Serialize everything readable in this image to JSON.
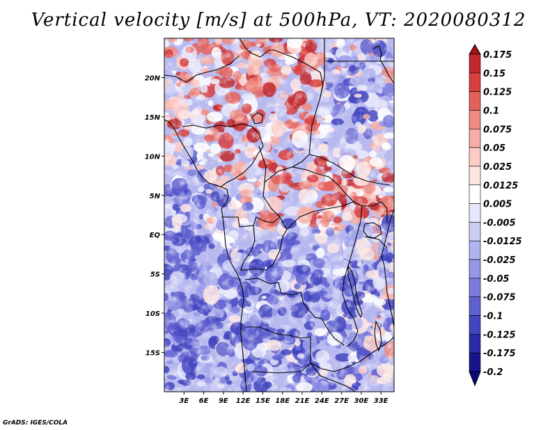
{
  "title": "Vertical velocity [m/s] at 500hPa, VT: 2020080312",
  "credit": "GrADS: IGES/COLA",
  "map": {
    "lat_labels": [
      "20N",
      "15N",
      "10N",
      "5N",
      "EQ",
      "5S",
      "10S",
      "15S"
    ],
    "lon_labels": [
      "3E",
      "6E",
      "9E",
      "12E",
      "15E",
      "18E",
      "21E",
      "24E",
      "27E",
      "30E",
      "33E"
    ]
  },
  "colorbar": {
    "labels": [
      "0.175",
      "0.15",
      "0.125",
      "0.1",
      "0.075",
      "0.05",
      "0.025",
      "0.0125",
      "0.005",
      "-0.005",
      "-0.0125",
      "-0.025",
      "-0.05",
      "-0.075",
      "-0.1",
      "-0.125",
      "-0.175",
      "-0.2"
    ],
    "colors": [
      "#a50f15",
      "#c0282d",
      "#d7403f",
      "#e4615a",
      "#ef8a80",
      "#f6aea6",
      "#fbcdc6",
      "#fde6e2",
      "#ffffff",
      "#e7e7fb",
      "#cccef5",
      "#b1b3ef",
      "#9698e7",
      "#7b7cdd",
      "#5f60d0",
      "#4345c0",
      "#2a2aa8",
      "#15148a",
      "#0b0878"
    ]
  },
  "chart_data": {
    "type": "heatmap",
    "title": "Vertical velocity [m/s] at 500hPa, VT: 2020080312",
    "variable": "Vertical velocity",
    "units": "m/s",
    "level": "500hPa",
    "valid_time": "2020080312",
    "lon_range": [
      0,
      35
    ],
    "lat_range": [
      -20,
      25
    ],
    "x_ticks": [
      "3E",
      "6E",
      "9E",
      "12E",
      "15E",
      "18E",
      "21E",
      "24E",
      "27E",
      "30E",
      "33E"
    ],
    "y_ticks": [
      "20N",
      "15N",
      "10N",
      "5N",
      "EQ",
      "5S",
      "10S",
      "15S"
    ],
    "contour_levels": [
      0.175,
      0.15,
      0.125,
      0.1,
      0.075,
      0.05,
      0.025,
      0.0125,
      0.005,
      -0.005,
      -0.0125,
      -0.025,
      -0.05,
      -0.075,
      -0.1,
      -0.125,
      -0.175,
      -0.2
    ]
  }
}
